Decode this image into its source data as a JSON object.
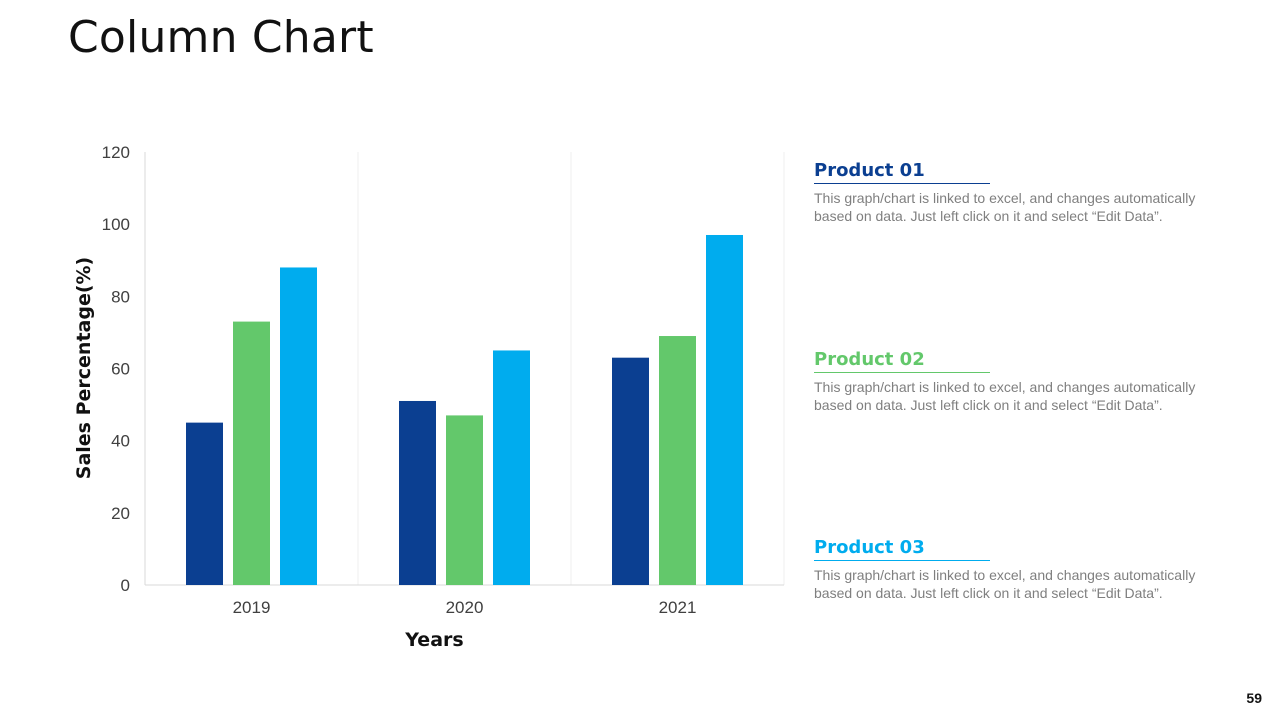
{
  "slide": {
    "title": "Column Chart",
    "page_number": "59"
  },
  "colors": {
    "product_01": "#0B3F91",
    "product_02": "#63C86B",
    "product_03": "#00ACEE"
  },
  "chart_data": {
    "type": "bar",
    "title": "",
    "xlabel": "Years",
    "ylabel": "Sales Percentage(%)",
    "categories": [
      "2019",
      "2020",
      "2021"
    ],
    "ylim": [
      0,
      120
    ],
    "yticks": [
      0,
      20,
      40,
      60,
      80,
      100,
      120
    ],
    "grid": "vertical category separators",
    "legend": "right side descriptions",
    "series": [
      {
        "name": "Product 01",
        "values": [
          45,
          51,
          63
        ]
      },
      {
        "name": "Product 02",
        "values": [
          73,
          47,
          69
        ]
      },
      {
        "name": "Product 03",
        "values": [
          88,
          65,
          97
        ]
      }
    ]
  },
  "legend_items": [
    {
      "title": "Product 01",
      "description": "This graph/chart is linked to excel, and changes automatically based on data. Just left click on it and select “Edit Data”."
    },
    {
      "title": "Product 02",
      "description": "This graph/chart is linked to excel, and changes automatically based on data. Just left click on it and select “Edit Data”."
    },
    {
      "title": "Product 03",
      "description": "This graph/chart is linked to excel, and changes automatically based on data. Just left click on it and select “Edit Data”."
    }
  ]
}
